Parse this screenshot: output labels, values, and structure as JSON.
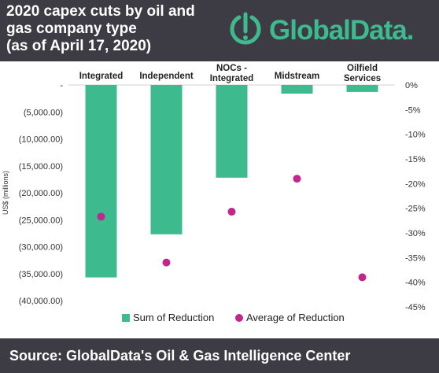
{
  "header": {
    "title_lines": [
      "2020 capex cuts by oil and",
      "gas company type",
      "(as of April 17, 2020)"
    ],
    "brand": "GlobalData."
  },
  "footer": {
    "source": "Source: GlobalData's Oil & Gas Intelligence Center"
  },
  "colors": {
    "header_bg": "#3d3b44",
    "bar": "#3dbb8f",
    "dot": "#c2258c",
    "brand": "#3dbb8f"
  },
  "icons": {
    "brand_logo": "globaldata-logo-icon"
  },
  "chart_data": {
    "type": "bar",
    "categories": [
      [
        "Integrated"
      ],
      [
        "Independent"
      ],
      [
        "NOCs -",
        "Integrated"
      ],
      [
        "Midstream"
      ],
      [
        "Oilfield",
        "Services"
      ]
    ],
    "series": [
      {
        "name": "Sum of Reduction",
        "type": "bar",
        "axis": "left",
        "values": [
          -35700,
          -27700,
          -17200,
          -1600,
          -1300
        ]
      },
      {
        "name": "Average of Reduction",
        "type": "scatter",
        "axis": "right",
        "values": [
          -26.7,
          -36.0,
          -25.7,
          -19.0,
          -39.0
        ]
      }
    ],
    "ylabel": "US$ (millions)",
    "ylim": [
      -40000,
      0
    ],
    "y_ticks": [
      0,
      -5000,
      -10000,
      -15000,
      -20000,
      -25000,
      -30000,
      -35000,
      -40000
    ],
    "y_tick_labels": [
      "-",
      "(5,000.00)",
      "(10,000.00)",
      "(15,000.00)",
      "(20,000.00)",
      "(25,000.00)",
      "(30,000.00)",
      "(35,000.00)",
      "(40,000.00)"
    ],
    "y2lim": [
      -45,
      0
    ],
    "y2_ticks": [
      0,
      -5,
      -10,
      -15,
      -20,
      -25,
      -30,
      -35,
      -40,
      -45
    ],
    "y2_tick_labels": [
      "0%",
      "-5%",
      "-10%",
      "-15%",
      "-20%",
      "-25%",
      "-30%",
      "-35%",
      "-40%",
      "-45%"
    ],
    "category_labels_position": "top",
    "legend_position": "bottom",
    "legend": [
      "Sum of Reduction",
      "Average of Reduction"
    ],
    "grid": false
  }
}
